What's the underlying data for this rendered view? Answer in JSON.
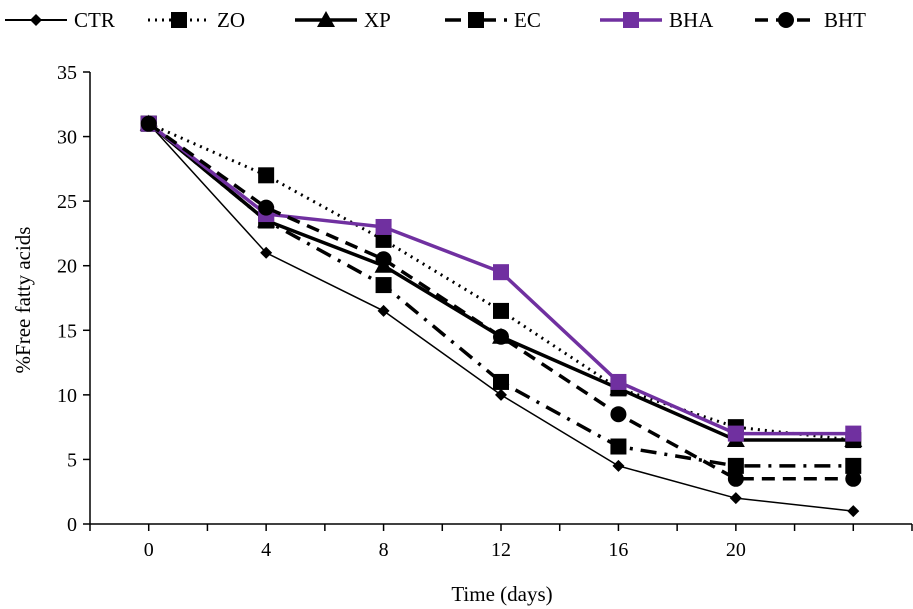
{
  "chart_data": {
    "type": "line",
    "xlabel": "Time (days)",
    "ylabel": "%Free fatty acids",
    "xlim": [
      -2,
      26
    ],
    "ylim": [
      0,
      35
    ],
    "x_ticks": [
      0,
      4,
      8,
      12,
      16,
      20
    ],
    "x_tick_labels": [
      "0",
      "4",
      "8",
      "12",
      "16",
      "20"
    ],
    "y_ticks": [
      0,
      5,
      10,
      15,
      20,
      25,
      30,
      35
    ],
    "y_tick_labels": [
      "0",
      "5",
      "10",
      "15",
      "20",
      "25",
      "30",
      "35"
    ],
    "grid": false,
    "legend_position": "top",
    "x": [
      0,
      4,
      8,
      12,
      16,
      20,
      24
    ],
    "series": [
      {
        "name": "CTR",
        "color": "#000000",
        "marker": "diamond",
        "dash": "solid-thin",
        "values": [
          31,
          21,
          16.5,
          10,
          4.5,
          2,
          1
        ]
      },
      {
        "name": "ZO",
        "color": "#000000",
        "marker": "square",
        "dash": "dotted",
        "values": [
          31,
          27,
          22,
          16.5,
          10.5,
          7.5,
          6.5
        ]
      },
      {
        "name": "XP",
        "color": "#000000",
        "marker": "triangle",
        "dash": "solid-thick",
        "values": [
          31,
          23.5,
          20,
          14.5,
          10.5,
          6.5,
          6.5
        ]
      },
      {
        "name": "EC",
        "color": "#000000",
        "marker": "square",
        "dash": "dashdot",
        "values": [
          31,
          23.5,
          18.5,
          11,
          6,
          4.5,
          4.5
        ]
      },
      {
        "name": "BHA",
        "color": "#7030A0",
        "marker": "square",
        "dash": "solid",
        "values": [
          31,
          24,
          23,
          19.5,
          11,
          7,
          7
        ]
      },
      {
        "name": "BHT",
        "color": "#000000",
        "marker": "circle",
        "dash": "dashed",
        "values": [
          31,
          24.5,
          20.5,
          14.5,
          8.5,
          3.5,
          3.5
        ]
      }
    ]
  }
}
